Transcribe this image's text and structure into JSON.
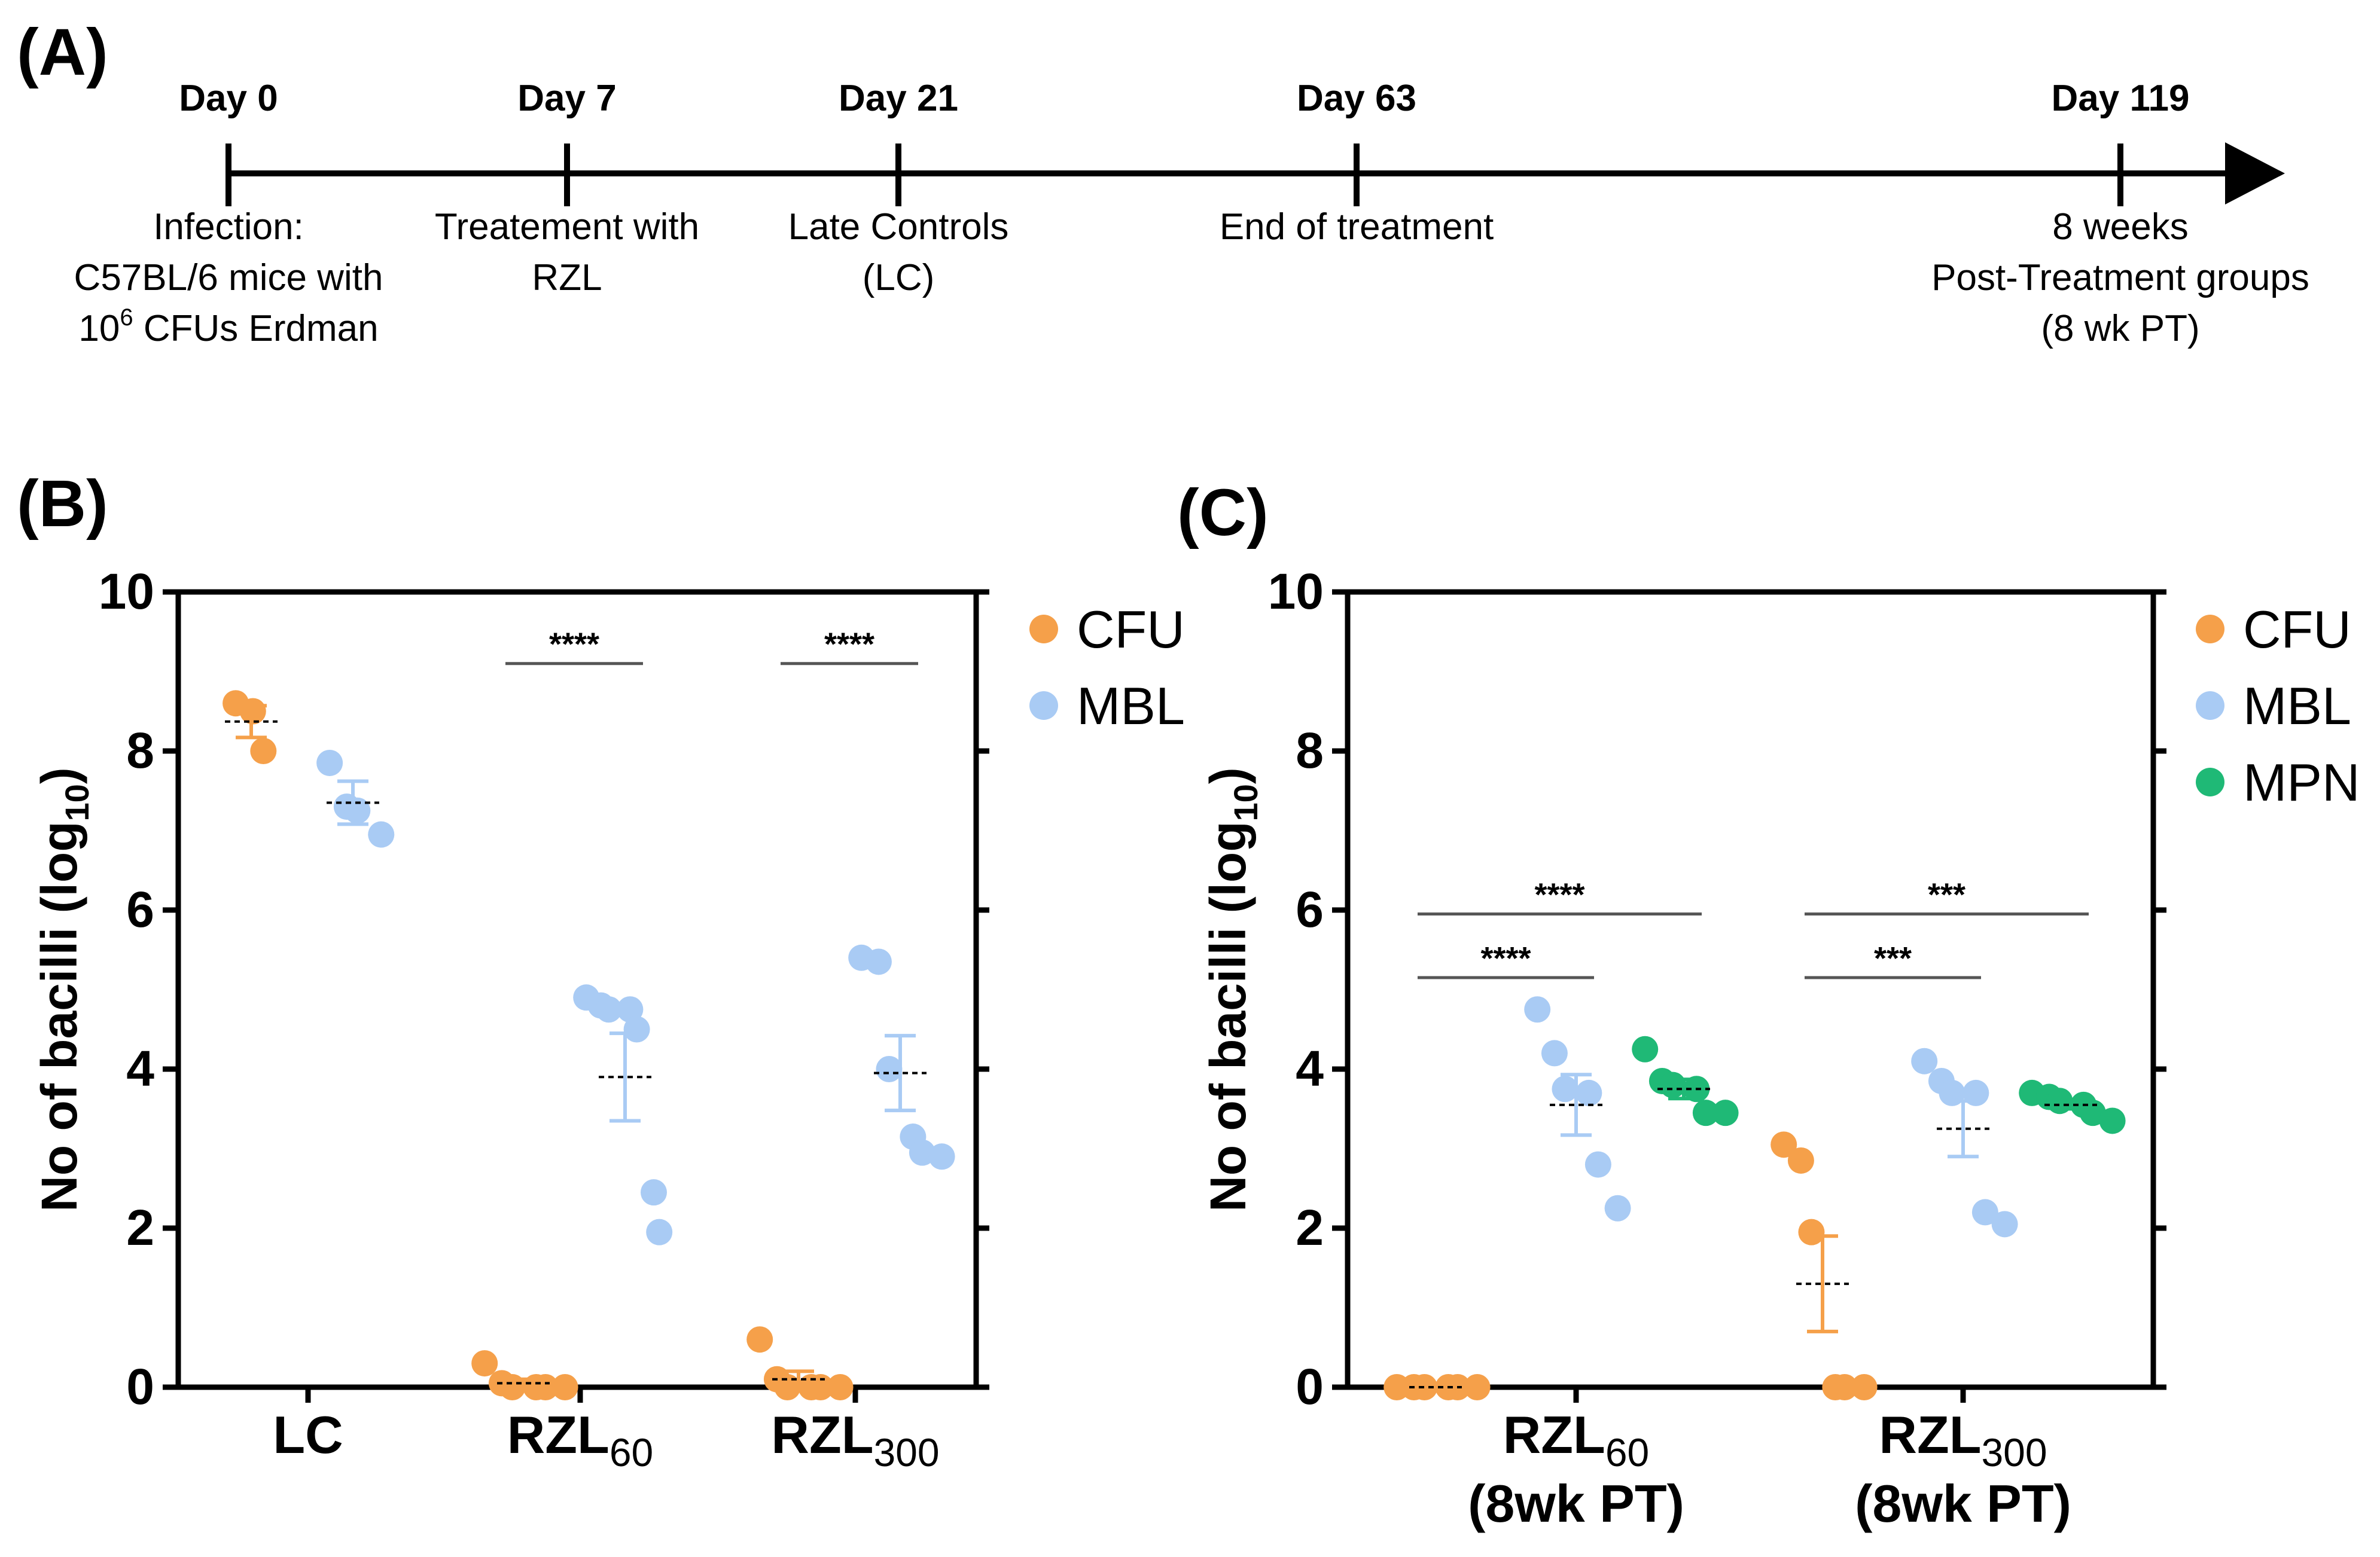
{
  "panels": {
    "a": "(A)",
    "b": "(B)",
    "c": "(C)"
  },
  "colors": {
    "CFU": "#F5A04A",
    "MBL": "#A9CBF4",
    "MPN": "#1FB976",
    "axis": "#000000",
    "sig": "#555555"
  },
  "timeline": {
    "events": [
      {
        "day": 0,
        "label": "Day 0",
        "desc": [
          "Infection:",
          "C57BL/6 mice with",
          "10",
          "6",
          " CFUs Erdman"
        ]
      },
      {
        "day": 7,
        "label": "Day 7",
        "desc": [
          "Treatement with",
          "RZL"
        ]
      },
      {
        "day": 21,
        "label": "Day 21",
        "desc": [
          "Late Controls",
          "(LC)"
        ]
      },
      {
        "day": 63,
        "label": "Day 63",
        "desc": [
          "End of treatment"
        ]
      },
      {
        "day": 119,
        "label": "Day 119",
        "desc": [
          "8 weeks",
          "Post-Treatment groups",
          "(8 wk PT)"
        ]
      }
    ]
  },
  "chart_data": [
    {
      "id": "B",
      "type": "scatter",
      "ylabel": "No of bacilli (log",
      "ylabel_sub": "10",
      "ylabel_close": ")",
      "ylim": [
        0,
        10
      ],
      "yticks": [
        "0",
        "2",
        "4",
        "6",
        "8",
        "10"
      ],
      "legend": [
        "CFU",
        "MBL"
      ],
      "groups": [
        {
          "label": "LC",
          "sub": "",
          "series": {
            "CFU": {
              "points": [
                8.6,
                8.5,
                8.0
              ],
              "mean": 8.37,
              "sem": 0.2
            },
            "MBL": {
              "points": [
                7.85,
                7.3,
                7.25,
                6.95
              ],
              "mean": 7.35,
              "sem": 0.27
            }
          }
        },
        {
          "label": "RZL",
          "sub": "60",
          "series": {
            "CFU": {
              "points": [
                0.3,
                0.05,
                0.0,
                0.0,
                0.0,
                0.0
              ],
              "mean": 0.05,
              "sem": 0.05
            },
            "MBL": {
              "points": [
                4.9,
                4.8,
                4.75,
                4.75,
                4.5,
                2.45,
                1.95
              ],
              "mean": 3.9,
              "sem": 0.55
            }
          }
        },
        {
          "label": "RZL",
          "sub": "300",
          "series": {
            "CFU": {
              "points": [
                0.6,
                0.1,
                0.0,
                0.0,
                0.0,
                0.0
              ],
              "mean": 0.1,
              "sem": 0.1
            },
            "MBL": {
              "points": [
                5.4,
                5.35,
                4.0,
                3.15,
                2.95,
                2.9
              ],
              "mean": 3.95,
              "sem": 0.47
            }
          }
        }
      ],
      "significance": [
        {
          "group": 1,
          "from": "CFU",
          "to": "MBL",
          "y": 9.1,
          "text": "****"
        },
        {
          "group": 2,
          "from": "CFU",
          "to": "MBL",
          "y": 9.1,
          "text": "****"
        }
      ]
    },
    {
      "id": "C",
      "type": "scatter",
      "ylabel": "No of bacilli (log",
      "ylabel_sub": "10",
      "ylabel_close": ")",
      "ylim": [
        0,
        10
      ],
      "yticks": [
        "0",
        "2",
        "4",
        "6",
        "8",
        "10"
      ],
      "legend": [
        "CFU",
        "MBL",
        "MPN"
      ],
      "groups": [
        {
          "label": "RZL",
          "sub": "60",
          "label2": "(8wk PT)",
          "series": {
            "CFU": {
              "points": [
                0.0,
                0.0,
                0.0,
                0.0,
                0.0,
                0.0
              ],
              "mean": 0.0,
              "sem": 0.0
            },
            "MBL": {
              "points": [
                4.75,
                4.2,
                3.75,
                3.7,
                2.8,
                2.25
              ],
              "mean": 3.55,
              "sem": 0.38
            },
            "MPN": {
              "points": [
                4.25,
                3.85,
                3.8,
                3.75,
                3.45,
                3.45
              ],
              "mean": 3.75,
              "sem": 0.12
            }
          }
        },
        {
          "label": "RZL",
          "sub": "300",
          "label2": "(8wk PT)",
          "series": {
            "CFU": {
              "points": [
                3.05,
                2.85,
                1.95,
                0.0,
                0.0,
                0.0
              ],
              "mean": 1.3,
              "sem": 0.6
            },
            "MBL": {
              "points": [
                4.1,
                3.85,
                3.7,
                3.7,
                2.2,
                2.05
              ],
              "mean": 3.25,
              "sem": 0.35
            },
            "MPN": {
              "points": [
                3.7,
                3.65,
                3.6,
                3.55,
                3.45,
                3.35
              ],
              "mean": 3.55,
              "sem": 0.05
            }
          }
        }
      ],
      "significance": [
        {
          "group": 0,
          "from": "CFU",
          "to": "MPN",
          "y": 5.95,
          "text": "****"
        },
        {
          "group": 0,
          "from": "CFU",
          "to": "MBL",
          "y": 5.15,
          "text": "****"
        },
        {
          "group": 1,
          "from": "CFU",
          "to": "MPN",
          "y": 5.95,
          "text": "***"
        },
        {
          "group": 1,
          "from": "CFU",
          "to": "MBL",
          "y": 5.15,
          "text": "***"
        }
      ]
    }
  ]
}
